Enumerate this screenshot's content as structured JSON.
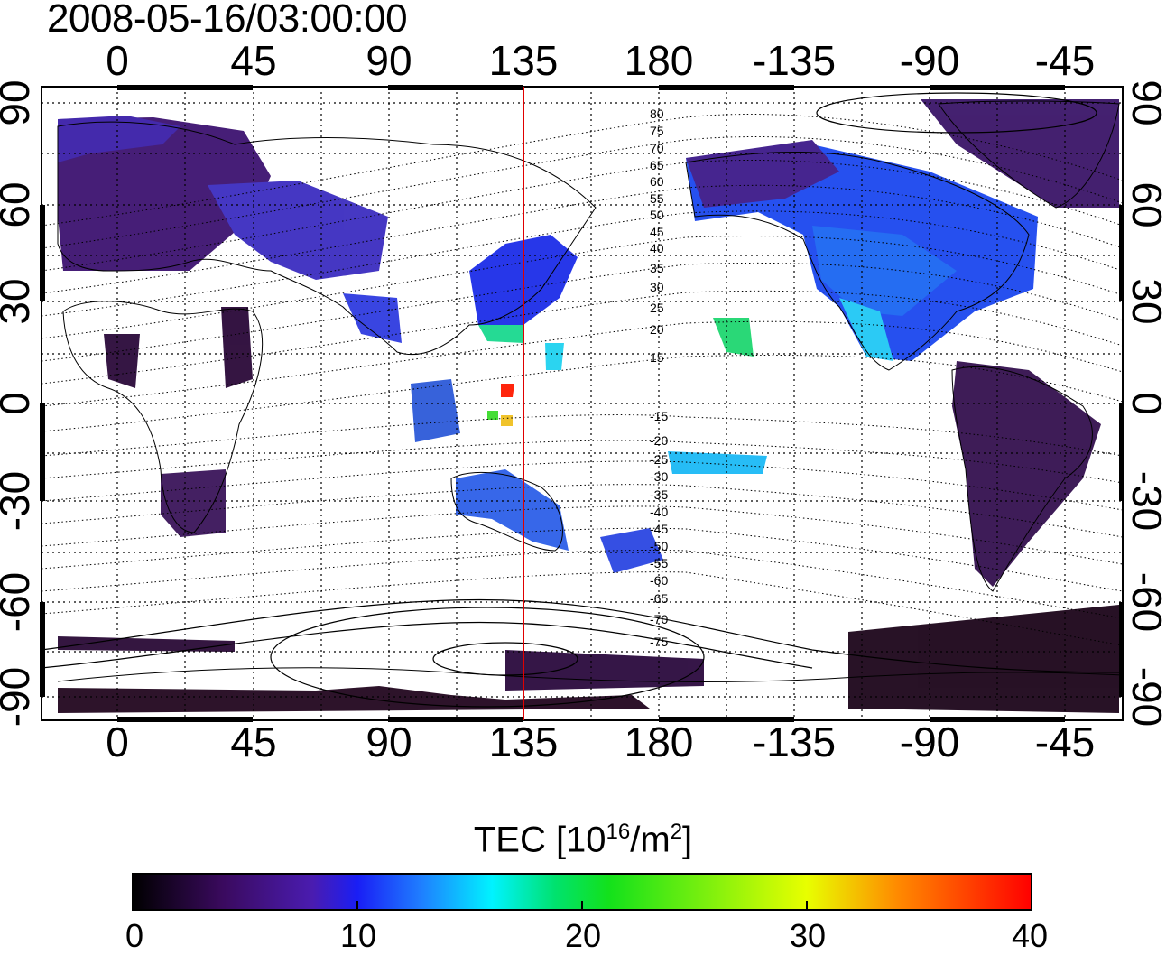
{
  "title": "2008-05-16/03:00:00",
  "map": {
    "lon_ticks": [
      "0",
      "45",
      "90",
      "135",
      "180",
      "-135",
      "-90",
      "-45"
    ],
    "lat_ticks": [
      "90",
      "60",
      "30",
      "0",
      "-30",
      "-60",
      "-90"
    ],
    "meridian_line": {
      "longitude": 135,
      "color": "#e00000"
    },
    "contour_labels": [
      "80",
      "75",
      "70",
      "65",
      "60",
      "55",
      "50",
      "45",
      "40",
      "35",
      "30",
      "25",
      "20",
      "15",
      "-15",
      "-20",
      "-25",
      "-30",
      "-35",
      "-40",
      "-45",
      "-50",
      "-55",
      "-60",
      "-65",
      "-70",
      "-75"
    ]
  },
  "colorbar": {
    "label_main": "TEC  [10",
    "label_exp1": "16",
    "label_mid": "/m",
    "label_exp2": "2",
    "label_end": "]",
    "min": 0,
    "max": 40,
    "ticks": [
      "0",
      "10",
      "20",
      "30",
      "40"
    ],
    "colors": [
      "#000000",
      "#3a0a5e",
      "#4a1cb0",
      "#1a1ef5",
      "#1f7dff",
      "#00f3ff",
      "#00e26e",
      "#13e11b",
      "#e8ff00",
      "#ff8b00",
      "#ff0000"
    ]
  }
}
